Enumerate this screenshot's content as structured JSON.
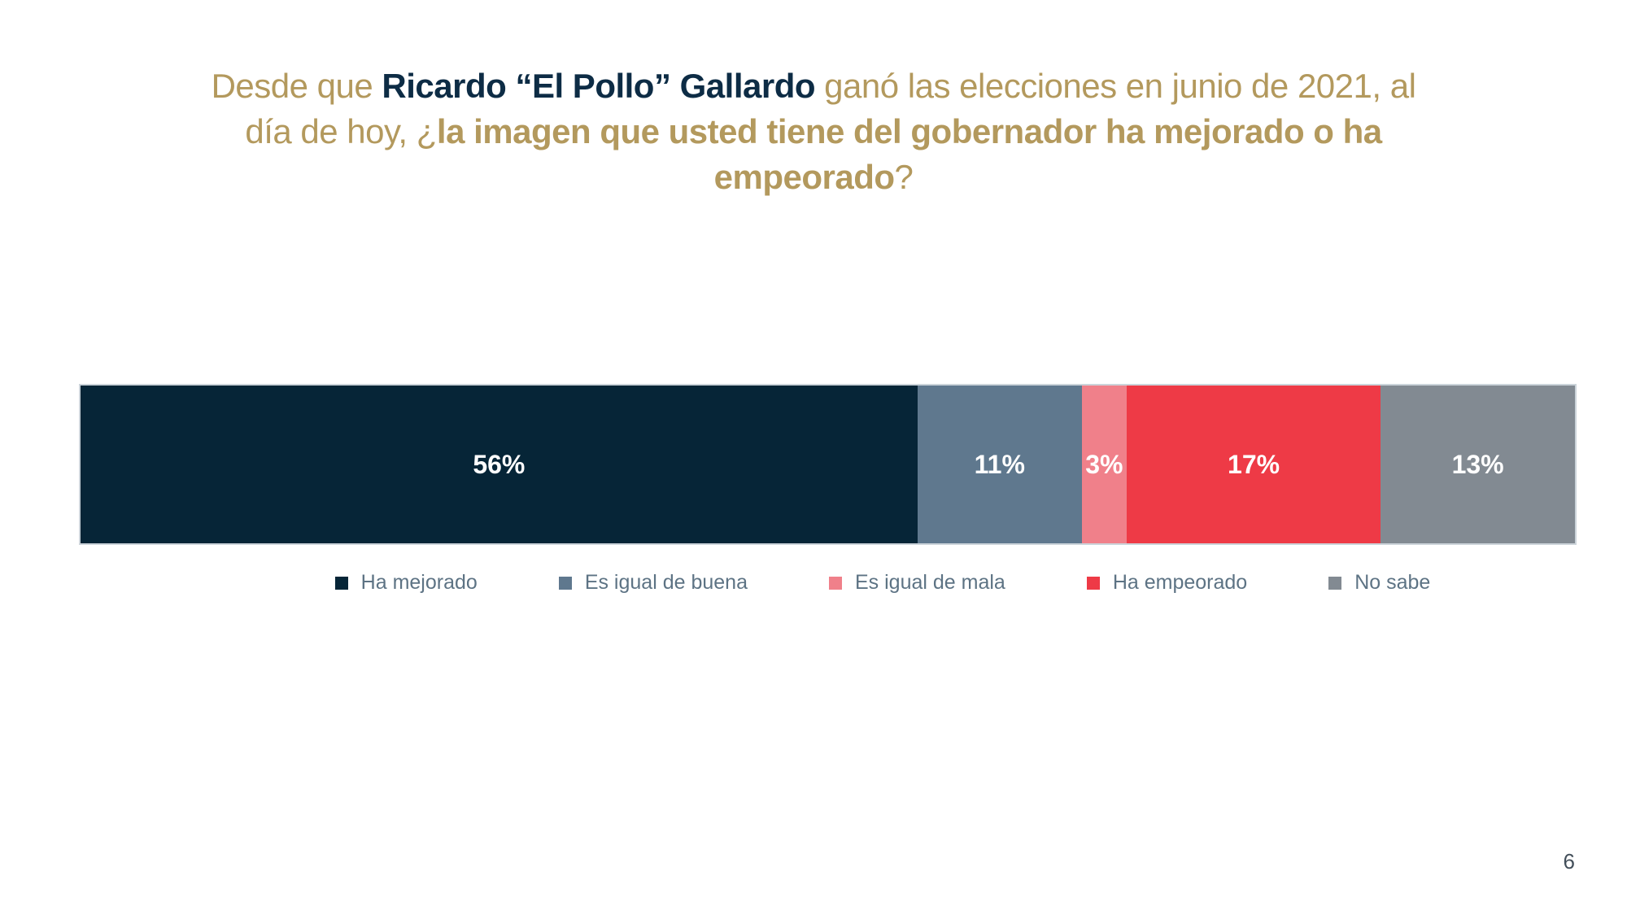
{
  "slide": {
    "background": "#ffffff",
    "page_number": "6"
  },
  "title": {
    "color_regular": "#b3995d",
    "color_name": "#0d2c45",
    "segments": [
      {
        "text": "Desde que ",
        "style": "regular"
      },
      {
        "text": "Ricardo “El Pollo” Gallardo",
        "style": "bold-name"
      },
      {
        "text": " ganó las elecciones en junio de 2021, al",
        "style": "regular"
      },
      {
        "text": "día de hoy, ¿",
        "style": "regular"
      },
      {
        "text": "la imagen que usted tiene del gobernador ha mejorado o ha",
        "style": "bold-gold"
      },
      {
        "text": "empeorado",
        "style": "bold-gold"
      },
      {
        "text": "?",
        "style": "regular"
      }
    ]
  },
  "chart_data": {
    "type": "bar",
    "orientation": "horizontal_stacked",
    "title": "Desde que Ricardo “El Pollo” Gallardo ganó las elecciones en junio de 2021, al día de hoy, ¿la imagen que usted tiene del gobernador ha mejorado o ha empeorado?",
    "categories": [
      "Ha mejorado",
      "Es igual de buena",
      "Es igual de mala",
      "Ha empeorado",
      "No sabe"
    ],
    "values": [
      56,
      11,
      3,
      17,
      13
    ],
    "value_labels": [
      "56%",
      "11%",
      "3%",
      "17%",
      "13%"
    ],
    "colors": [
      "#062537",
      "#5f788e",
      "#f0808a",
      "#ee3a46",
      "#828a92"
    ],
    "value_label_color": "#ffffff",
    "xlim": [
      0,
      100
    ],
    "grid": false,
    "legend_position": "bottom",
    "legend_text_color": "#5d7384"
  }
}
